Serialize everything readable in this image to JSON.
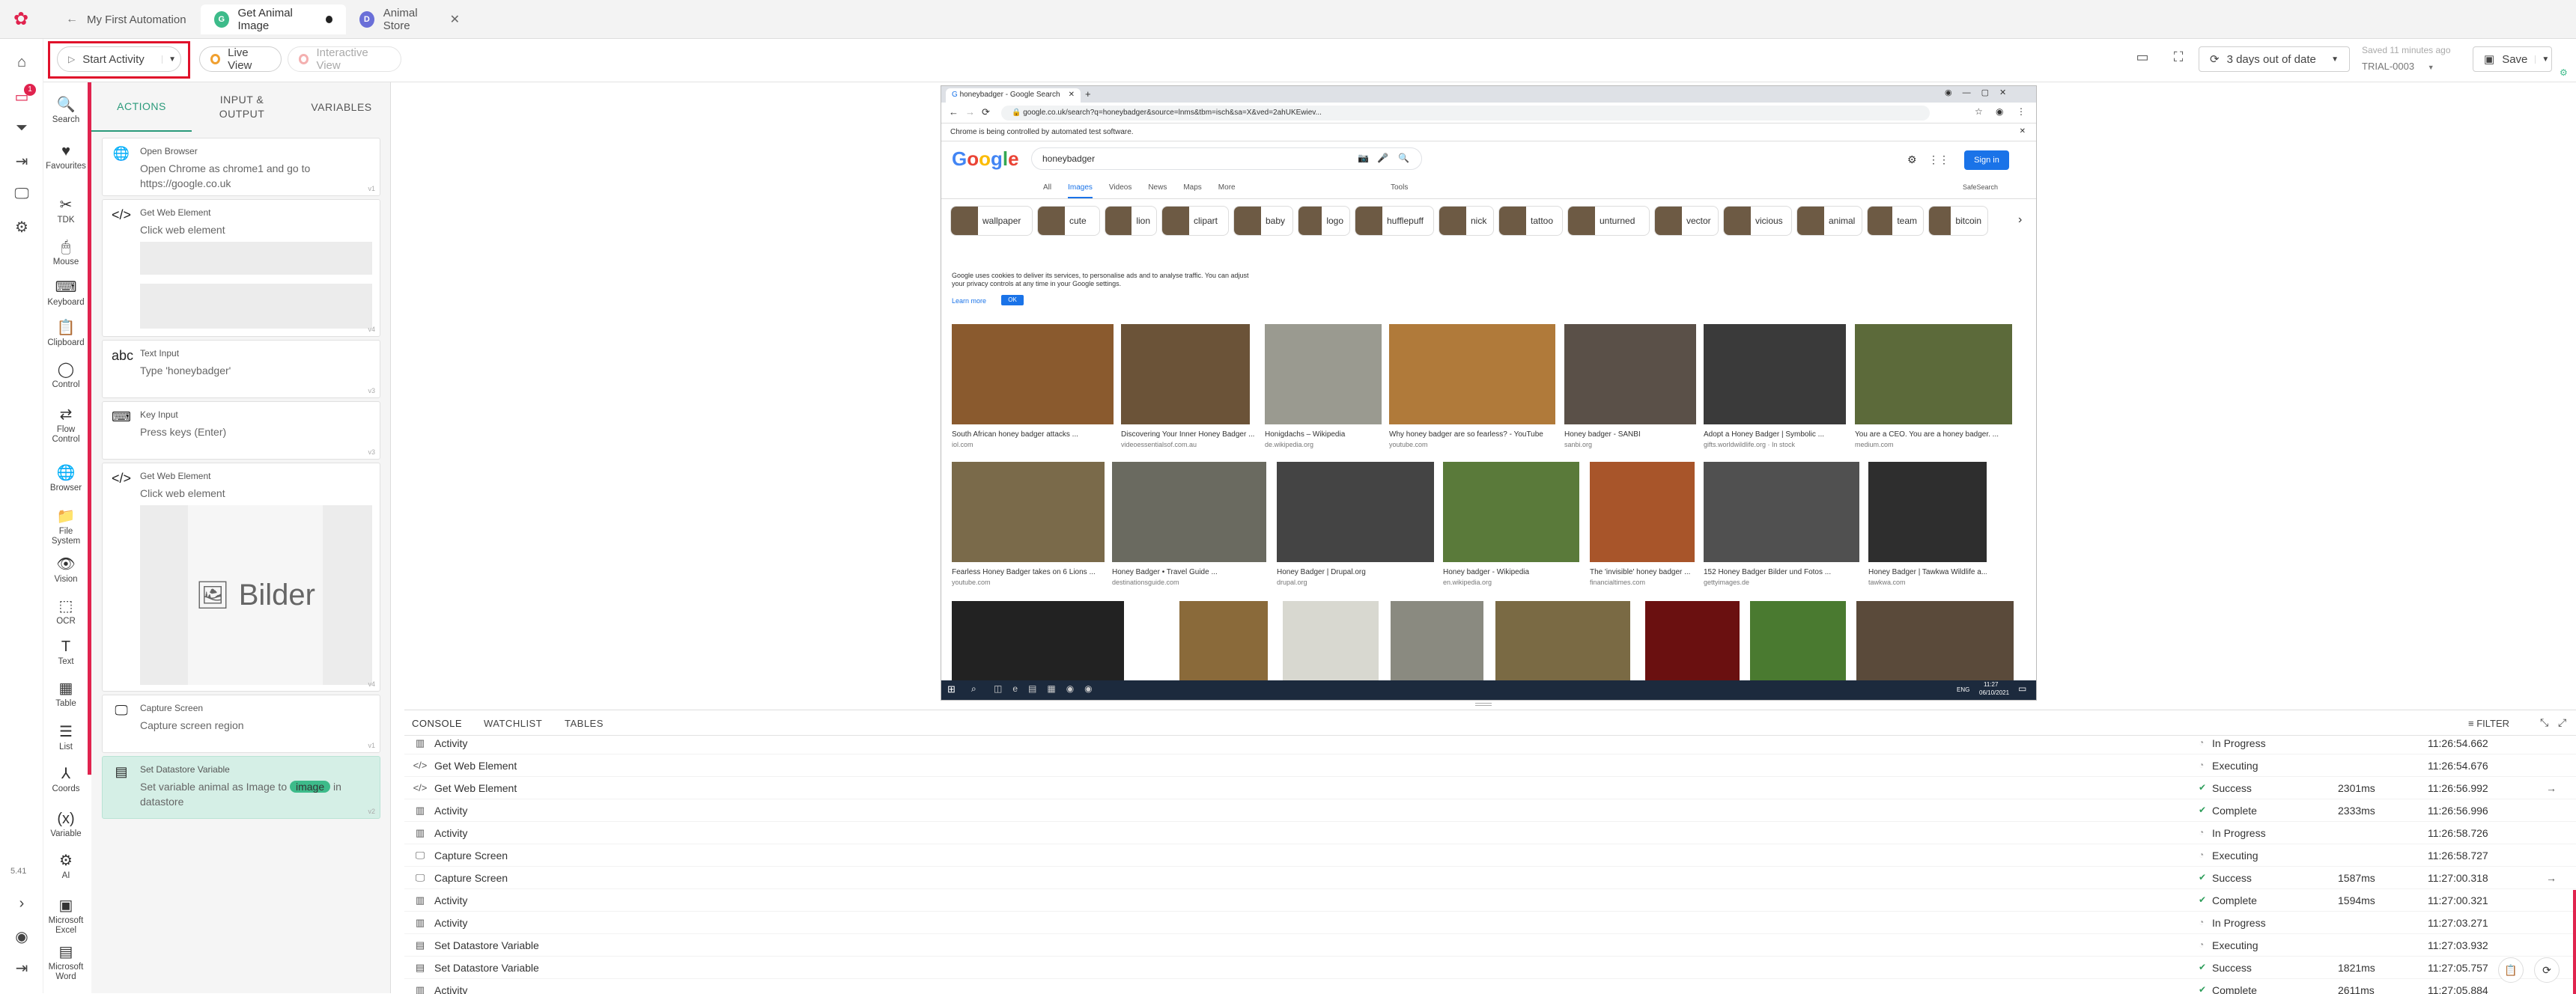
{
  "tabs": [
    {
      "label": "My First Automation",
      "icon": "back-arrow-icon"
    },
    {
      "label": "Get Animal Image",
      "icon": "G",
      "color": "#3dbb8a"
    },
    {
      "label": "Animal Store",
      "icon": "D",
      "color": "#6a6fd8"
    }
  ],
  "toolbar": {
    "start_activity": "Start Activity",
    "live_view": "Live View",
    "interactive_view": "Interactive View",
    "out_of_date": "3 days out of date",
    "saved": "Saved 11 minutes ago",
    "trial": "TRIAL-0003",
    "save": "Save"
  },
  "notification_count": "1",
  "version": "5.41",
  "toolbox": [
    {
      "label": "Search",
      "icon": "🔍"
    },
    {
      "label": "Favourites",
      "icon": "♥"
    },
    {
      "label": "TDK",
      "icon": "✂"
    },
    {
      "label": "Mouse",
      "icon": "🖱"
    },
    {
      "label": "Keyboard",
      "icon": "⌨"
    },
    {
      "label": "Clipboard",
      "icon": "📋"
    },
    {
      "label": "Control",
      "icon": "◯"
    },
    {
      "label": "Flow Control",
      "icon": "⇄"
    },
    {
      "label": "Browser",
      "icon": "🌐"
    },
    {
      "label": "File System",
      "icon": "📁"
    },
    {
      "label": "Vision",
      "icon": "👁"
    },
    {
      "label": "OCR",
      "icon": "⬚"
    },
    {
      "label": "Text",
      "icon": "T"
    },
    {
      "label": "Table",
      "icon": "▦"
    },
    {
      "label": "List",
      "icon": "☰"
    },
    {
      "label": "Coords",
      "icon": "⅄"
    },
    {
      "label": "Variable",
      "icon": "(x)"
    },
    {
      "label": "AI",
      "icon": "⚙"
    },
    {
      "label": "Microsoft Excel",
      "icon": "▣"
    },
    {
      "label": "Microsoft Word",
      "icon": "▤"
    }
  ],
  "action_tabs": [
    "ACTIONS",
    "INPUT & OUTPUT",
    "VARIABLES"
  ],
  "actions": [
    {
      "title": "Open Browser",
      "desc": "Open Chrome as chrome1 and go to https://google.co.uk",
      "ver": "v1",
      "icon": "🌐"
    },
    {
      "title": "Get Web Element",
      "desc": "Click web element",
      "ver": "v4",
      "icon": "</>"
    },
    {
      "title": "Text Input",
      "desc": "Type 'honeybadger'",
      "ver": "v3",
      "icon": "abc"
    },
    {
      "title": "Key Input",
      "desc": "Press keys (Enter)",
      "ver": "v3",
      "icon": "⌨"
    },
    {
      "title": "Get Web Element",
      "desc": "Click web element",
      "ver": "v4",
      "icon": "</>",
      "image_text": "Bilder"
    },
    {
      "title": "Capture Screen",
      "desc": "Capture screen region",
      "ver": "v1",
      "icon": "🖵"
    },
    {
      "title": "Set Datastore Variable",
      "desc_pre": "Set variable animal as Image to",
      "desc_chip": "image",
      "desc_post": "in datastore",
      "ver": "v2",
      "icon": "▤"
    }
  ],
  "browser": {
    "tab_title": "honeybadger - Google Search",
    "url": "google.co.uk/search?q=honeybadger&source=lnms&tbm=isch&sa=X&ved=2ahUKEwiev...",
    "automation_notice": "Chrome is being controlled by automated test software.",
    "search_query": "honeybadger",
    "sign_in": "Sign in",
    "nav": [
      "All",
      "Images",
      "Videos",
      "News",
      "Maps",
      "More"
    ],
    "tools": "Tools",
    "safesearch": "SafeSearch",
    "chips": [
      "wallpaper",
      "cute",
      "lion",
      "clipart",
      "baby",
      "logo",
      "hufflepuff",
      "nick",
      "tattoo",
      "unturned",
      "vector",
      "vicious",
      "animal",
      "team",
      "bitcoin"
    ],
    "cookie_text": "Google uses cookies to deliver its services, to personalise ads and to analyse traffic. You can adjust your privacy controls at any time in your Google settings.",
    "learn_more": "Learn more",
    "ok": "OK",
    "row1": [
      {
        "cap": "South African honey badger attacks ...",
        "src": "iol.com"
      },
      {
        "cap": "Discovering Your Inner Honey Badger ...",
        "src": "videoessentialsof.com.au"
      },
      {
        "cap": "Honigdachs – Wikipedia",
        "src": "de.wikipedia.org"
      },
      {
        "cap": "Why honey badger are so fearless? - YouTube",
        "src": "youtube.com"
      },
      {
        "cap": "Honey badger - SANBI",
        "src": "sanbi.org"
      },
      {
        "cap": "Adopt a Honey Badger | Symbolic ...",
        "src": "gifts.worldwildlife.org · In stock"
      },
      {
        "cap": "You are a CEO. You are a honey badger. ...",
        "src": "medium.com"
      }
    ],
    "row2": [
      {
        "cap": "Fearless Honey Badger takes on 6 Lions ...",
        "src": "youtube.com"
      },
      {
        "cap": "Honey Badger • Travel Guide ...",
        "src": "destinationsguide.com"
      },
      {
        "cap": "Honey Badger | Drupal.org",
        "src": "drupal.org"
      },
      {
        "cap": "Honey badger - Wikipedia",
        "src": "en.wikipedia.org"
      },
      {
        "cap": "The 'invisible' honey badger ...",
        "src": "financialtimes.com"
      },
      {
        "cap": "152 Honey Badger Bilder und Fotos ...",
        "src": "gettyimages.de"
      },
      {
        "cap": "Honey Badger | Tawkwa Wildlife a...",
        "src": "tawkwa.com"
      }
    ],
    "taskbar_time": "11:27",
    "taskbar_date": "06/10/2021",
    "taskbar_lang": "ENG"
  },
  "bottom_tabs": [
    "CONSOLE",
    "WATCHLIST",
    "TABLES"
  ],
  "filter": "FILTER",
  "log": [
    {
      "name": "Activity",
      "status": "In Progress",
      "dur": "",
      "time": "11:26:54.662",
      "icon": "▥"
    },
    {
      "name": "Get Web Element",
      "status": "Executing",
      "dur": "",
      "time": "11:26:54.676",
      "icon": "</>"
    },
    {
      "name": "Get Web Element",
      "status": "Success",
      "dur": "2301ms",
      "time": "11:26:56.992",
      "icon": "</>"
    },
    {
      "name": "Activity",
      "status": "Complete",
      "dur": "2333ms",
      "time": "11:26:56.996",
      "icon": "▥"
    },
    {
      "name": "Activity",
      "status": "In Progress",
      "dur": "",
      "time": "11:26:58.726",
      "icon": "▥"
    },
    {
      "name": "Capture Screen",
      "status": "Executing",
      "dur": "",
      "time": "11:26:58.727",
      "icon": "🖵"
    },
    {
      "name": "Capture Screen",
      "status": "Success",
      "dur": "1587ms",
      "time": "11:27:00.318",
      "icon": "🖵"
    },
    {
      "name": "Activity",
      "status": "Complete",
      "dur": "1594ms",
      "time": "11:27:00.321",
      "icon": "▥"
    },
    {
      "name": "Activity",
      "status": "In Progress",
      "dur": "",
      "time": "11:27:03.271",
      "icon": "▥"
    },
    {
      "name": "Set Datastore Variable",
      "status": "Executing",
      "dur": "",
      "time": "11:27:03.932",
      "icon": "▤"
    },
    {
      "name": "Set Datastore Variable",
      "status": "Success",
      "dur": "1821ms",
      "time": "11:27:05.757",
      "icon": "▤"
    },
    {
      "name": "Activity",
      "status": "Complete",
      "dur": "2611ms",
      "time": "11:27:05.884",
      "icon": "▥"
    }
  ],
  "colors": {
    "accent": "#e0234e",
    "teal": "#3dbb8a",
    "success": "#2e9e5b",
    "google_blue": "#1a73e8"
  }
}
